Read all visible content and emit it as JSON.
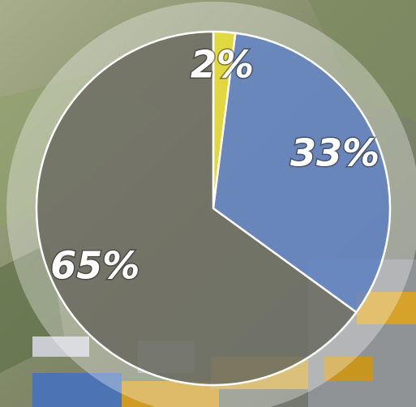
{
  "chart_data": {
    "type": "pie",
    "categories": [
      null,
      null,
      null
    ],
    "values": [
      2,
      33,
      65
    ],
    "value_labels": [
      "2%",
      "33%",
      "65%"
    ],
    "colors": [
      "#e4da3c",
      "#5a7ec2",
      "#67665c"
    ]
  }
}
